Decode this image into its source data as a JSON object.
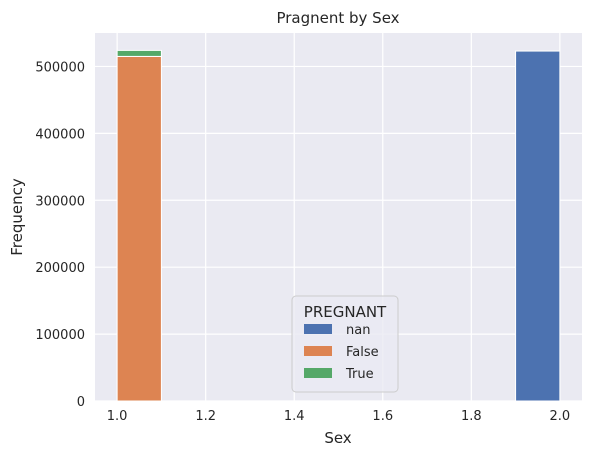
{
  "chart_data": {
    "type": "bar",
    "title": "Pragnent by Sex",
    "xlabel": "Sex",
    "ylabel": "Frequency",
    "xlim": [
      0.95,
      2.05
    ],
    "ylim": [
      0,
      550000
    ],
    "xticks": [
      "1.0",
      "1.2",
      "1.4",
      "1.6",
      "1.8",
      "2.0"
    ],
    "yticks": [
      "0",
      "100000",
      "200000",
      "300000",
      "400000",
      "500000"
    ],
    "grid": true,
    "background": "#EAEAF2",
    "legend": {
      "title": "PREGNANT",
      "position": "lower-center",
      "entries": [
        {
          "label": "nan",
          "color": "#4C72B0"
        },
        {
          "label": "False",
          "color": "#DD8452"
        },
        {
          "label": "True",
          "color": "#55A868"
        }
      ]
    },
    "bars": [
      {
        "series": "nan",
        "x_start": 1.9,
        "x_end": 2.0,
        "bottom": 0,
        "value": 523000,
        "color": "#4C72B0"
      },
      {
        "series": "False",
        "x_start": 1.0,
        "x_end": 1.1,
        "bottom": 0,
        "value": 515000,
        "color": "#DD8452"
      },
      {
        "series": "True",
        "x_start": 1.0,
        "x_end": 1.1,
        "bottom": 515000,
        "value": 9000,
        "color": "#55A868"
      }
    ]
  }
}
